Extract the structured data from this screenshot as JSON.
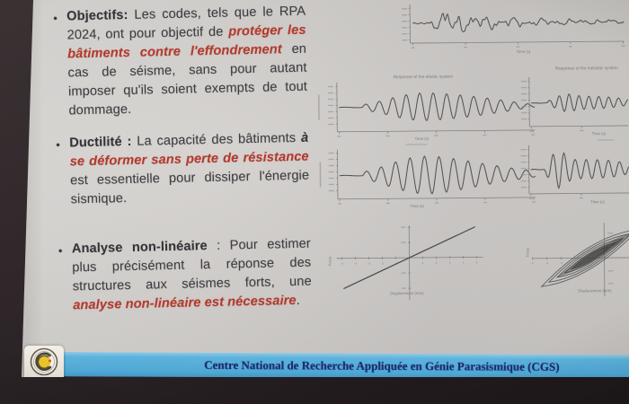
{
  "slide": {
    "bullets": [
      {
        "segments": [
          {
            "t": "Objectifs:",
            "s": "b"
          },
          {
            "t": " Les codes, tels que le RPA 2024, ont pour objectif de ",
            "s": "n"
          },
          {
            "t": "protéger les bâtiments contre l'effondrement",
            "s": "ri"
          },
          {
            "t": " en cas de séisme, sans pour autant imposer qu'ils soient exempts de tout dommage.",
            "s": "n"
          }
        ]
      },
      {
        "segments": [
          {
            "t": "Ductilité :",
            "s": "b"
          },
          {
            "t": " La capacité des bâtiments ",
            "s": "n"
          },
          {
            "t": "à ",
            "s": "bi"
          },
          {
            "t": "se déformer sans perte de résistance",
            "s": "ri"
          },
          {
            "t": " est essentielle pour dissiper l'énergie sismique.",
            "s": "n"
          }
        ]
      },
      {
        "segments": [
          {
            "t": "Analyse non-linéaire",
            "s": "b"
          },
          {
            "t": " : Pour estimer plus précisément la réponse des structures aux séismes forts, une ",
            "s": "n"
          },
          {
            "t": "analyse non-linéaire est nécessaire",
            "s": "ri"
          },
          {
            "t": ".",
            "s": "n"
          }
        ]
      }
    ],
    "footer": {
      "text": "Centre National de Recherche Appliquée en Génie Parasismique (CGS)"
    }
  },
  "colors": {
    "accent_red": "#b23a2d",
    "banner_blue": "#4fa8d4",
    "banner_text_navy": "#1c296d",
    "body_text": "#3e3d40",
    "slide_bg": "#cdcac7"
  },
  "chart_data": [
    {
      "id": "ground-acceleration",
      "type": "line",
      "title": "",
      "xlabel": "Time (s)",
      "ylabel": "",
      "description": "Earthquake ground-motion accelerogram: quiet start, strong shaking burst, gradual decay",
      "synth": {
        "kind": "burst",
        "scale": 20
      }
    },
    {
      "id": "elastic-response",
      "type": "line",
      "title": "Response of the elastic system",
      "xlabel": "Time (s)",
      "ylabel": "",
      "description": "Oscillatory acceleration response of the elastic system, symmetric about zero",
      "synth": {
        "kind": "resp",
        "flat": 0.12,
        "freq": 14.5,
        "scale": 15,
        "peaks": [
          [
            0.42,
            0.055,
            1.0
          ],
          [
            0.68,
            0.025,
            0.4
          ],
          [
            0.85,
            0.02,
            0.25
          ]
        ]
      }
    },
    {
      "id": "inelastic-response",
      "type": "line",
      "title": "Response of the inelastic system",
      "xlabel": "Time (s)",
      "ylabel": "",
      "description": "Reduced-amplitude oscillation of the inelastic system",
      "synth": {
        "kind": "resp",
        "flat": 0.16,
        "freq": 10,
        "scale": 8,
        "peaks": [
          [
            0.33,
            0.02,
            0.9
          ],
          [
            0.5,
            0.04,
            0.5
          ],
          [
            0.68,
            0.05,
            0.45
          ],
          [
            0.88,
            0.05,
            0.4
          ]
        ]
      }
    },
    {
      "id": "elastic-displacement",
      "type": "line",
      "title": "",
      "xlabel": "Time (s)",
      "ylabel": "",
      "description": "Displacement time history of the elastic system",
      "synth": {
        "kind": "resp",
        "flat": 0.12,
        "freq": 13.5,
        "scale": 17,
        "peaks": [
          [
            0.38,
            0.045,
            1.0
          ],
          [
            0.6,
            0.04,
            0.55
          ],
          [
            0.82,
            0.05,
            0.35
          ]
        ]
      }
    },
    {
      "id": "inelastic-displacement",
      "type": "line",
      "title": "",
      "xlabel": "Time (s)",
      "ylabel": "",
      "description": "Displacement time history with drift, inelastic system",
      "synth": {
        "kind": "resp",
        "flat": 0.14,
        "freq": 9,
        "scale": 15,
        "sign": -1,
        "peaks": [
          [
            0.27,
            0.012,
            1.1
          ],
          [
            0.45,
            0.05,
            0.5
          ],
          [
            0.7,
            0.06,
            0.4
          ],
          [
            0.9,
            0.05,
            0.3
          ]
        ]
      }
    },
    {
      "id": "elastic-force-displacement",
      "type": "line",
      "title": "",
      "xlabel": "Displacement (mm)",
      "ylabel": "Force",
      "xticks": [
        -5,
        -4,
        -3,
        -2,
        -1,
        1,
        2,
        3,
        4,
        5
      ],
      "description": "Linear elastic force-displacement relationship: straight line through the origin",
      "synth": {
        "kind": "linear",
        "slope": 0.46
      }
    },
    {
      "id": "inelastic-hysteresis",
      "type": "line",
      "title": "",
      "xlabel": "Displacement (mm)",
      "ylabel": "Force",
      "xticks": [
        -5,
        -4,
        -3
      ],
      "description": "Inelastic force-displacement hysteresis loops (energy dissipation)",
      "synth": {
        "kind": "hysteresis",
        "slope": 0.58,
        "loops": [
          [
            1.0,
            0.23
          ],
          [
            0.85,
            0.185
          ],
          [
            0.68,
            0.145
          ],
          [
            0.52,
            0.105
          ],
          [
            0.38,
            0.075
          ]
        ],
        "fills": [
          [
            0.8,
            0.11,
            0.45
          ],
          [
            0.55,
            0.07,
            0.65
          ]
        ]
      }
    }
  ]
}
